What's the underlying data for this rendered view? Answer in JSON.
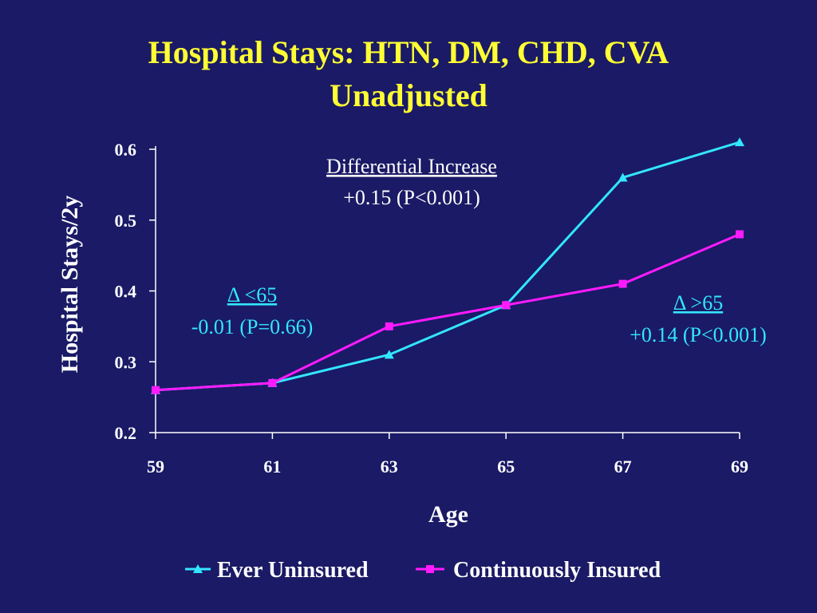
{
  "slide": {
    "title_line1": "Hospital Stays: HTN, DM, CHD, CVA",
    "title_line2": "Unadjusted"
  },
  "annotations": {
    "center_heading": "Differential Increase",
    "center_value": "+0.15 (P<0.001)",
    "left_heading": "Δ <65",
    "left_value": "-0.01 (P=0.66)",
    "right_heading": "Δ >65",
    "right_value": "+0.14 (P<0.001)"
  },
  "colors": {
    "background": "#1a1a66",
    "title": "#ffff33",
    "ever_uninsured": "#33e6ff",
    "continuously_insured": "#ff1aff"
  },
  "chart_data": {
    "type": "line",
    "title": "Hospital Stays: HTN, DM, CHD, CVA Unadjusted",
    "xlabel": "Age",
    "ylabel": "Hospital Stays/2y",
    "x": [
      59,
      61,
      63,
      65,
      67,
      69
    ],
    "x_tick_labels": [
      "59",
      "61",
      "63",
      "65",
      "67",
      "69"
    ],
    "ylim": [
      0.2,
      0.6
    ],
    "y_ticks": [
      0.2,
      0.3,
      0.4,
      0.5,
      0.6
    ],
    "y_tick_labels": [
      "0.2",
      "0.3",
      "0.4",
      "0.5",
      "0.6"
    ],
    "grid": false,
    "legend_position": "bottom",
    "series": [
      {
        "name": "Ever Uninsured",
        "marker": "triangle",
        "color": "#33e6ff",
        "values": [
          0.26,
          0.27,
          0.31,
          0.38,
          0.56,
          0.61
        ]
      },
      {
        "name": "Continuously Insured",
        "marker": "square",
        "color": "#ff1aff",
        "values": [
          0.26,
          0.27,
          0.35,
          0.38,
          0.41,
          0.48
        ]
      }
    ]
  }
}
